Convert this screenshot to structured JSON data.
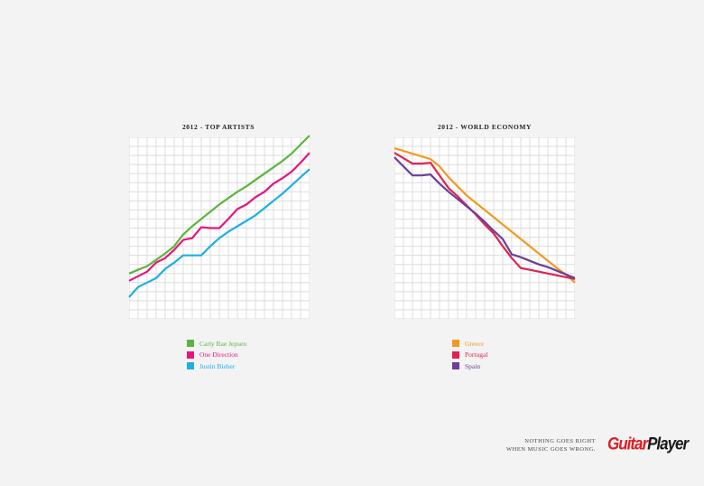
{
  "chart_data": [
    {
      "type": "line",
      "title": "2012 - TOP ARTISTS",
      "x": [
        0,
        1,
        2,
        3,
        4,
        5,
        6,
        7,
        8,
        9,
        10,
        11,
        12,
        13,
        14,
        15,
        16,
        17,
        18,
        19,
        20
      ],
      "ylim": [
        0,
        20
      ],
      "grid": true,
      "legend": "bottom",
      "series": [
        {
          "name": "Carly Rae Jepsen",
          "color": "#5cb53f",
          "values": [
            5,
            5.4,
            5.8,
            6.5,
            7.2,
            8.0,
            9.3,
            10.2,
            11.0,
            11.8,
            12.6,
            13.3,
            14.0,
            14.6,
            15.3,
            16.0,
            16.7,
            17.4,
            18.2,
            19.2,
            20.2
          ]
        },
        {
          "name": "One Direction",
          "color": "#e5177c",
          "values": [
            4.2,
            4.7,
            5.2,
            6.2,
            6.7,
            7.6,
            8.7,
            8.9,
            10.1,
            10.0,
            10.0,
            11.0,
            12.1,
            12.6,
            13.4,
            14.0,
            14.9,
            15.5,
            16.2,
            17.2,
            18.3
          ]
        },
        {
          "name": "Justin Bieber",
          "color": "#1eaee6",
          "values": [
            2.4,
            3.5,
            4.0,
            4.5,
            5.5,
            6.2,
            7.0,
            7.0,
            7.0,
            8.0,
            8.9,
            9.6,
            10.2,
            10.8,
            11.4,
            12.2,
            13.0,
            13.8,
            14.7,
            15.6,
            16.5
          ]
        }
      ]
    },
    {
      "type": "line",
      "title": "2012 - WORLD ECONOMY",
      "x": [
        0,
        1,
        2,
        3,
        4,
        5,
        6,
        7,
        8,
        9,
        10,
        11,
        12,
        13,
        14,
        15,
        16,
        17,
        18,
        19,
        20
      ],
      "ylim": [
        0,
        20
      ],
      "grid": true,
      "legend": "bottom",
      "series": [
        {
          "name": "Greece",
          "color": "#f29a1f",
          "values": [
            18.8,
            18.5,
            18.2,
            17.9,
            17.6,
            16.8,
            15.6,
            14.6,
            13.6,
            12.8,
            12.0,
            11.2,
            10.4,
            9.6,
            8.8,
            8.0,
            7.2,
            6.4,
            5.6,
            4.9,
            4.0
          ]
        },
        {
          "name": "Portugal",
          "color": "#e0234e",
          "values": [
            18.3,
            17.7,
            17.1,
            17.1,
            17.2,
            15.8,
            14.4,
            13.5,
            12.5,
            11.5,
            10.4,
            9.4,
            8.0,
            6.7,
            5.6,
            5.4,
            5.2,
            5.0,
            4.8,
            4.6,
            4.4
          ]
        },
        {
          "name": "Spain",
          "color": "#6c3f98",
          "values": [
            17.8,
            16.8,
            15.8,
            15.8,
            15.9,
            14.9,
            14.0,
            13.2,
            12.4,
            11.6,
            10.7,
            9.7,
            8.8,
            7.1,
            6.8,
            6.4,
            6.0,
            5.7,
            5.3,
            4.9,
            4.5
          ]
        }
      ]
    }
  ],
  "footer": {
    "tagline_line1": "NOTHING GOES RIGHT",
    "tagline_line2": "WHEN MUSIC GOES WRONG.",
    "logo_word1": "Guitar",
    "logo_word2": "Player"
  },
  "colors": {
    "background": "#f3f3f3",
    "grid_cell": "#ffffff",
    "grid_line": "#dcdcdc",
    "logo_red": "#e01b24",
    "logo_black": "#1a1a1a"
  }
}
